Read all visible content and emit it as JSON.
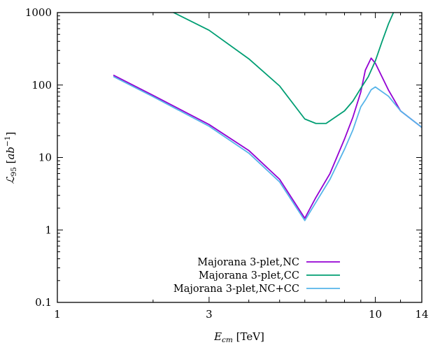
{
  "chart_data": {
    "type": "line",
    "xlabel": {
      "main": "E",
      "sub": "cm",
      "unit": " [TeV]"
    },
    "ylabel": {
      "main": "ℒ",
      "sub": "95",
      "unit_open": " [",
      "unit_main": "ab",
      "unit_sup": "−1",
      "unit_close": "]"
    },
    "x_scale": "log",
    "y_scale": "log",
    "xlim": [
      1,
      14
    ],
    "ylim": [
      0.1,
      1000
    ],
    "x_ticks": [
      {
        "value": 1,
        "label": "1"
      },
      {
        "value": 3,
        "label": "3"
      },
      {
        "value": 10,
        "label": "10"
      },
      {
        "value": 14,
        "label": "14"
      }
    ],
    "y_ticks": [
      {
        "value": 0.1,
        "label": "0.1"
      },
      {
        "value": 1,
        "label": "1"
      },
      {
        "value": 10,
        "label": "10"
      },
      {
        "value": 100,
        "label": "100"
      },
      {
        "value": 1000,
        "label": "1000"
      }
    ],
    "grid": false,
    "legend_position": "bottom-center",
    "series": [
      {
        "name": "Majorana 3-plet,NC",
        "color": "#9400d3",
        "points": [
          [
            1.5,
            137
          ],
          [
            2.0,
            72
          ],
          [
            3.0,
            28.5
          ],
          [
            4.0,
            12.5
          ],
          [
            5.0,
            5.0
          ],
          [
            6.0,
            1.45
          ],
          [
            6.5,
            2.8
          ],
          [
            7.2,
            6.0
          ],
          [
            8.0,
            18
          ],
          [
            8.5,
            36
          ],
          [
            9.0,
            80
          ],
          [
            9.3,
            160
          ],
          [
            9.7,
            235
          ],
          [
            10.0,
            200
          ],
          [
            11.0,
            85
          ],
          [
            12.0,
            44
          ],
          [
            14.0,
            26
          ]
        ]
      },
      {
        "name": "Majorana 3-plet,CC",
        "color": "#009e73",
        "points": [
          [
            2.3,
            1020
          ],
          [
            3.0,
            570
          ],
          [
            4.0,
            230
          ],
          [
            5.0,
            97
          ],
          [
            6.0,
            34
          ],
          [
            6.5,
            29.5
          ],
          [
            7.0,
            29.5
          ],
          [
            8.0,
            44
          ],
          [
            8.5,
            60
          ],
          [
            9.0,
            90
          ],
          [
            9.5,
            130
          ],
          [
            10.0,
            215
          ],
          [
            10.5,
            400
          ],
          [
            11.0,
            700
          ],
          [
            11.4,
            1000
          ]
        ]
      },
      {
        "name": "Majorana 3-plet,NC+CC",
        "color": "#56b4e9",
        "points": [
          [
            1.5,
            131
          ],
          [
            2.0,
            69
          ],
          [
            3.0,
            27
          ],
          [
            4.0,
            11.5
          ],
          [
            5.0,
            4.6
          ],
          [
            6.0,
            1.35
          ],
          [
            6.5,
            2.4
          ],
          [
            7.2,
            5.0
          ],
          [
            8.0,
            13
          ],
          [
            8.5,
            24
          ],
          [
            9.0,
            50
          ],
          [
            9.3,
            62
          ],
          [
            9.7,
            86
          ],
          [
            10.0,
            94
          ],
          [
            11.0,
            70
          ],
          [
            12.0,
            44
          ],
          [
            14.0,
            26
          ]
        ]
      }
    ]
  }
}
